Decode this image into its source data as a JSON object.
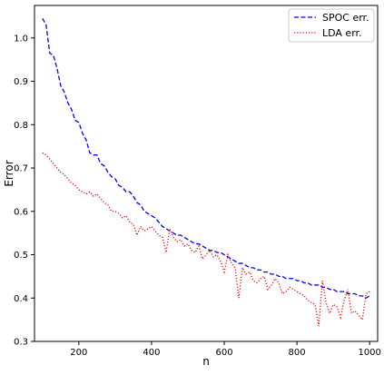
{
  "chart_data": {
    "type": "line",
    "title": "",
    "xlabel": "n",
    "ylabel": "Error",
    "xlim": [
      78,
      1022
    ],
    "ylim": [
      0.3,
      1.075
    ],
    "xticks": [
      200,
      400,
      600,
      800,
      1000
    ],
    "xtick_labels": [
      "200",
      "400",
      "600",
      "800",
      "1000"
    ],
    "yticks": [
      0.3,
      0.4,
      0.5,
      0.6,
      0.7,
      0.8,
      0.9,
      1.0
    ],
    "ytick_labels": [
      "0.3",
      "0.4",
      "0.5",
      "0.6",
      "0.7",
      "0.8",
      "0.9",
      "1.0"
    ],
    "grid": false,
    "legend_position": "top-right",
    "x": [
      100,
      110,
      120,
      130,
      140,
      150,
      160,
      170,
      180,
      190,
      200,
      210,
      220,
      230,
      240,
      250,
      260,
      270,
      280,
      290,
      300,
      310,
      320,
      330,
      340,
      350,
      360,
      370,
      380,
      390,
      400,
      410,
      420,
      430,
      440,
      450,
      460,
      470,
      480,
      490,
      500,
      510,
      520,
      530,
      540,
      550,
      560,
      570,
      580,
      590,
      600,
      610,
      620,
      630,
      640,
      650,
      660,
      670,
      680,
      690,
      700,
      710,
      720,
      730,
      740,
      750,
      760,
      770,
      780,
      790,
      800,
      810,
      820,
      830,
      840,
      850,
      860,
      870,
      880,
      890,
      900,
      910,
      920,
      930,
      940,
      950,
      960,
      970,
      980,
      990,
      1000
    ],
    "series": [
      {
        "name": "SPOC err.",
        "color": "#0000ff",
        "dash": "dashed",
        "values": [
          1.045,
          1.03,
          0.965,
          0.96,
          0.93,
          0.89,
          0.875,
          0.85,
          0.835,
          0.81,
          0.805,
          0.78,
          0.765,
          0.735,
          0.73,
          0.73,
          0.71,
          0.705,
          0.69,
          0.68,
          0.675,
          0.66,
          0.655,
          0.645,
          0.645,
          0.635,
          0.62,
          0.615,
          0.6,
          0.595,
          0.59,
          0.585,
          0.575,
          0.565,
          0.56,
          0.555,
          0.55,
          0.545,
          0.545,
          0.54,
          0.535,
          0.53,
          0.525,
          0.525,
          0.52,
          0.515,
          0.51,
          0.51,
          0.505,
          0.505,
          0.5,
          0.495,
          0.49,
          0.485,
          0.48,
          0.48,
          0.475,
          0.47,
          0.47,
          0.465,
          0.465,
          0.46,
          0.46,
          0.455,
          0.455,
          0.45,
          0.45,
          0.445,
          0.445,
          0.445,
          0.44,
          0.44,
          0.435,
          0.435,
          0.43,
          0.43,
          0.43,
          0.425,
          0.425,
          0.42,
          0.42,
          0.415,
          0.415,
          0.415,
          0.41,
          0.41,
          0.41,
          0.405,
          0.405,
          0.4,
          0.405
        ]
      },
      {
        "name": "LDA err.",
        "color": "#ff0000",
        "dash": "dotted",
        "values": [
          0.735,
          0.73,
          0.72,
          0.71,
          0.7,
          0.69,
          0.685,
          0.675,
          0.665,
          0.66,
          0.65,
          0.645,
          0.64,
          0.645,
          0.635,
          0.64,
          0.63,
          0.62,
          0.615,
          0.6,
          0.6,
          0.595,
          0.585,
          0.59,
          0.575,
          0.57,
          0.545,
          0.565,
          0.555,
          0.56,
          0.565,
          0.555,
          0.545,
          0.54,
          0.505,
          0.56,
          0.54,
          0.53,
          0.535,
          0.52,
          0.525,
          0.51,
          0.505,
          0.52,
          0.49,
          0.5,
          0.51,
          0.495,
          0.5,
          0.485,
          0.46,
          0.5,
          0.48,
          0.47,
          0.4,
          0.47,
          0.455,
          0.46,
          0.44,
          0.435,
          0.445,
          0.45,
          0.42,
          0.43,
          0.445,
          0.435,
          0.41,
          0.415,
          0.425,
          0.42,
          0.415,
          0.41,
          0.405,
          0.395,
          0.39,
          0.385,
          0.335,
          0.44,
          0.39,
          0.365,
          0.385,
          0.38,
          0.355,
          0.395,
          0.42,
          0.365,
          0.37,
          0.36,
          0.35,
          0.41,
          0.415
        ]
      }
    ]
  }
}
